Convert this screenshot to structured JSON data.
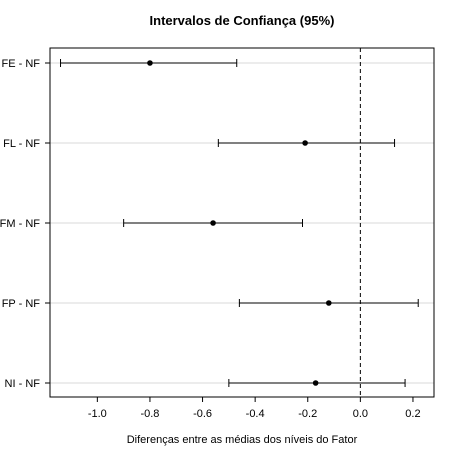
{
  "chart_data": {
    "type": "scatter",
    "title": "Intervalos de Confiança (95%)",
    "xlabel": "Diferenças entre as médias dos níveis do Fator",
    "ylabel": "",
    "xlim": [
      -1.18,
      0.28
    ],
    "xticks": [
      -1.0,
      -0.8,
      -0.6,
      -0.4,
      -0.2,
      0.0,
      0.2
    ],
    "xtick_labels": [
      "-1.0",
      "-0.8",
      "-0.6",
      "-0.4",
      "-0.2",
      "0.0",
      "0.2"
    ],
    "reference_line": {
      "x": 0.0,
      "style": "dashed"
    },
    "grid": "horizontal",
    "intervals": [
      {
        "label": "FE - NF",
        "estimate": -0.8,
        "lower": -1.14,
        "upper": -0.47
      },
      {
        "label": "FL - NF",
        "estimate": -0.21,
        "lower": -0.54,
        "upper": 0.13
      },
      {
        "label": "FM - NF",
        "estimate": -0.56,
        "lower": -0.9,
        "upper": -0.22
      },
      {
        "label": "FP - NF",
        "estimate": -0.12,
        "lower": -0.46,
        "upper": 0.22
      },
      {
        "label": "NI - NF",
        "estimate": -0.17,
        "lower": -0.5,
        "upper": 0.17
      }
    ],
    "colors": {
      "points": "#000000",
      "intervals": "#000000",
      "grid": "#d9d9d9",
      "reference": "#000000"
    }
  }
}
